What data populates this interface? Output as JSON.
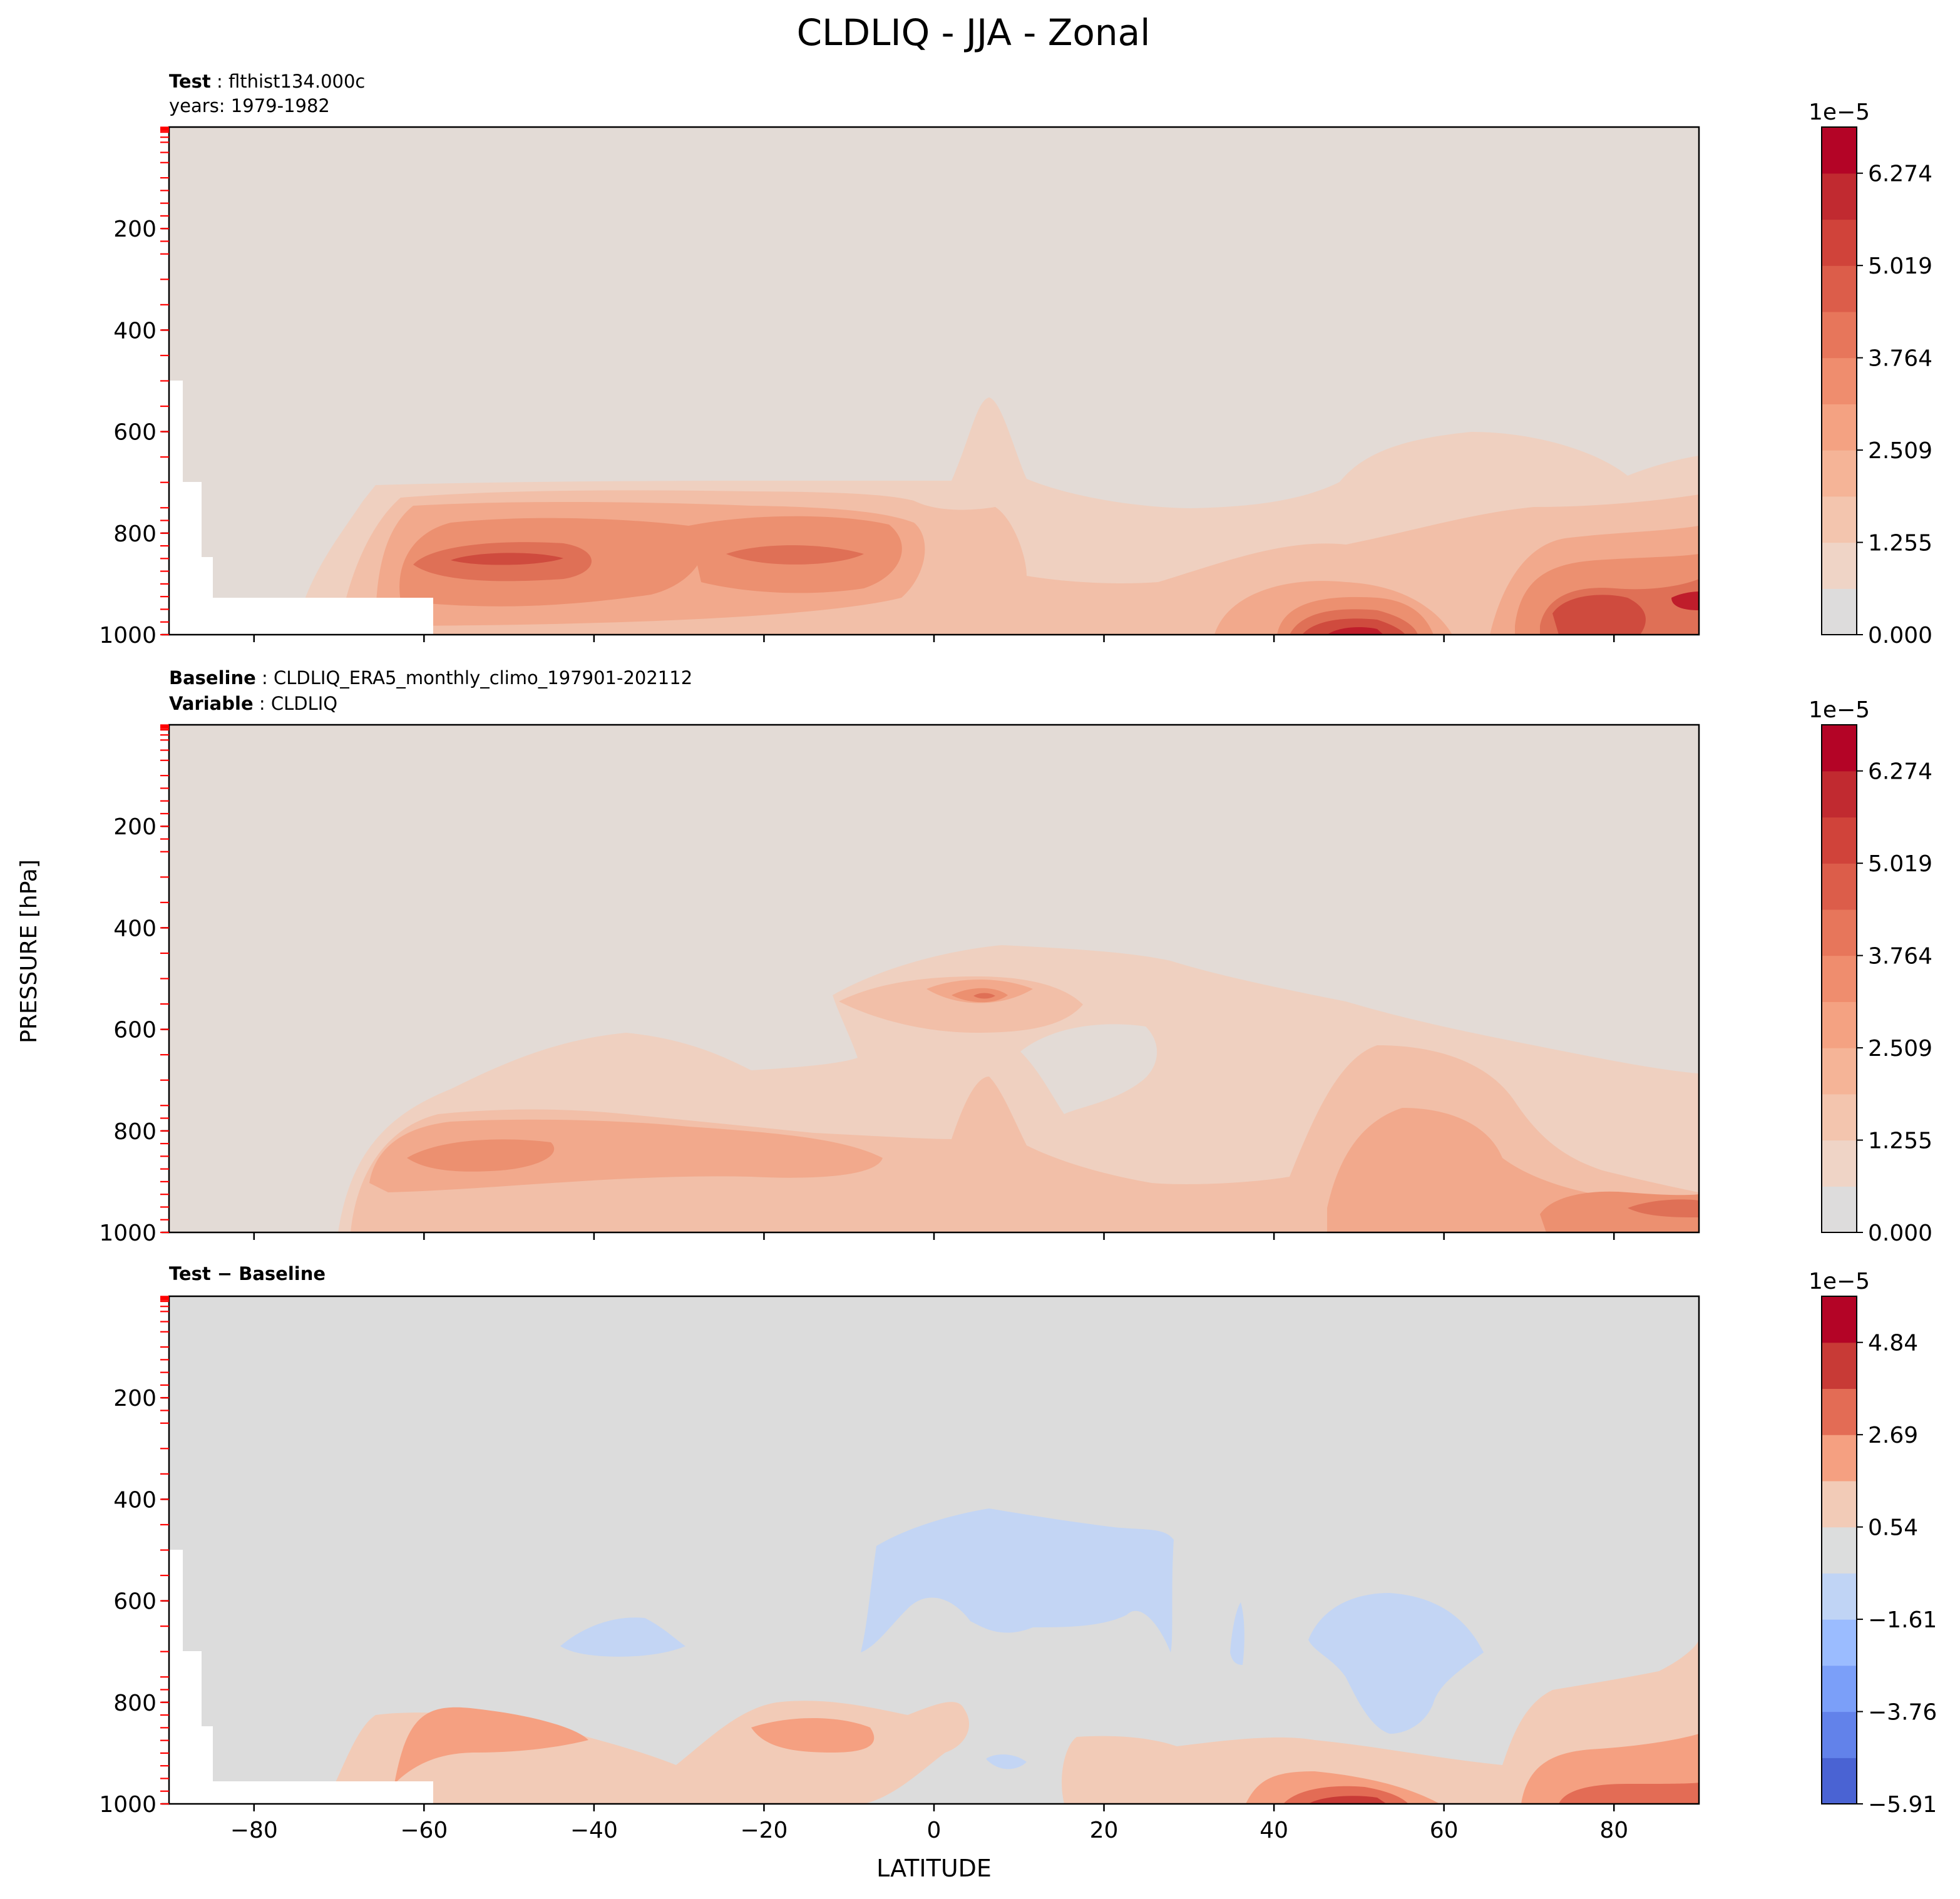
{
  "figure": {
    "title": "CLDLIQ - JJA - Zonal",
    "ylabel": "PRESSURE [hPa]",
    "xlabel": "LATITUDE"
  },
  "chart_data": [
    {
      "type": "contour",
      "panel": "test",
      "subtitle_bold": "Test",
      "subtitle_text": "flthist134.000c",
      "subtitle2_text": "years: 1979-1982",
      "xlim": [
        -90,
        90
      ],
      "ylim": [
        1000,
        0
      ],
      "x_ticks": [
        -80,
        -60,
        -40,
        -20,
        0,
        20,
        40,
        60,
        80
      ],
      "y_ticks": [
        200,
        400,
        600,
        800,
        1000
      ],
      "colorbar": {
        "exponent": "1e−5",
        "tick_labels": [
          "0.000",
          "1.255",
          "2.509",
          "3.764",
          "5.019",
          "6.274"
        ],
        "levels": 11,
        "colors": [
          "#dddcdc",
          "#efd4c6",
          "#f3c5ae",
          "#f5b497",
          "#f4a282",
          "#ef8d6e",
          "#e7765b",
          "#dc5d4a",
          "#d0433a",
          "#c12a30",
          "#b40426"
        ]
      },
      "max_region": {
        "lat": [
          43,
          55
        ],
        "p": [
          960,
          1000
        ],
        "value": 6.6e-05
      }
    },
    {
      "type": "contour",
      "panel": "baseline",
      "subtitle_bold": "Baseline",
      "subtitle_text": "CLDLIQ_ERA5_monthly_climo_197901-202112",
      "subtitle2_bold": "Variable",
      "subtitle2_text": "CLDLIQ",
      "xlim": [
        -90,
        90
      ],
      "ylim": [
        1000,
        0
      ],
      "x_ticks": [
        -80,
        -60,
        -40,
        -20,
        0,
        20,
        40,
        60,
        80
      ],
      "y_ticks": [
        200,
        400,
        600,
        800,
        1000
      ],
      "colorbar": {
        "exponent": "1e−5",
        "tick_labels": [
          "0.000",
          "1.255",
          "2.509",
          "3.764",
          "5.019",
          "6.274"
        ],
        "levels": 11,
        "colors": [
          "#dddcdc",
          "#efd4c6",
          "#f3c5ae",
          "#f5b497",
          "#f4a282",
          "#ef8d6e",
          "#e7765b",
          "#dc5d4a",
          "#d0433a",
          "#c12a30",
          "#b40426"
        ]
      }
    },
    {
      "type": "contour",
      "panel": "difference",
      "subtitle_bold": "Test − Baseline",
      "xlim": [
        -90,
        90
      ],
      "ylim": [
        1000,
        0
      ],
      "x_ticks": [
        -80,
        -60,
        -40,
        -20,
        0,
        20,
        40,
        60,
        80
      ],
      "y_ticks": [
        200,
        400,
        600,
        800,
        1000
      ],
      "colorbar": {
        "exponent": "1e−5",
        "tick_labels": [
          "−5.91",
          "−3.76",
          "−1.61",
          "0.54",
          "2.69",
          "4.84"
        ],
        "levels": 11,
        "colors": [
          "#4a63d3",
          "#6282ea",
          "#7b9ff9",
          "#9bbcff",
          "#c0d4f5",
          "#dcdddd",
          "#f2cbb7",
          "#f5a081",
          "#e36c55",
          "#c83a36",
          "#b40426"
        ]
      }
    }
  ],
  "colors": {
    "bg_test": "#e3dbd6",
    "bg_diff": "#dcdcdc",
    "l1": "#efd0c0",
    "l2": "#f2bfa8",
    "l3": "#f2a98c",
    "l4": "#ec9070",
    "l5": "#df7056",
    "l6": "#cf4b3e",
    "l7": "#bf1d2b",
    "neg": "#c3d5f4",
    "level_tick": "#ff0000"
  }
}
